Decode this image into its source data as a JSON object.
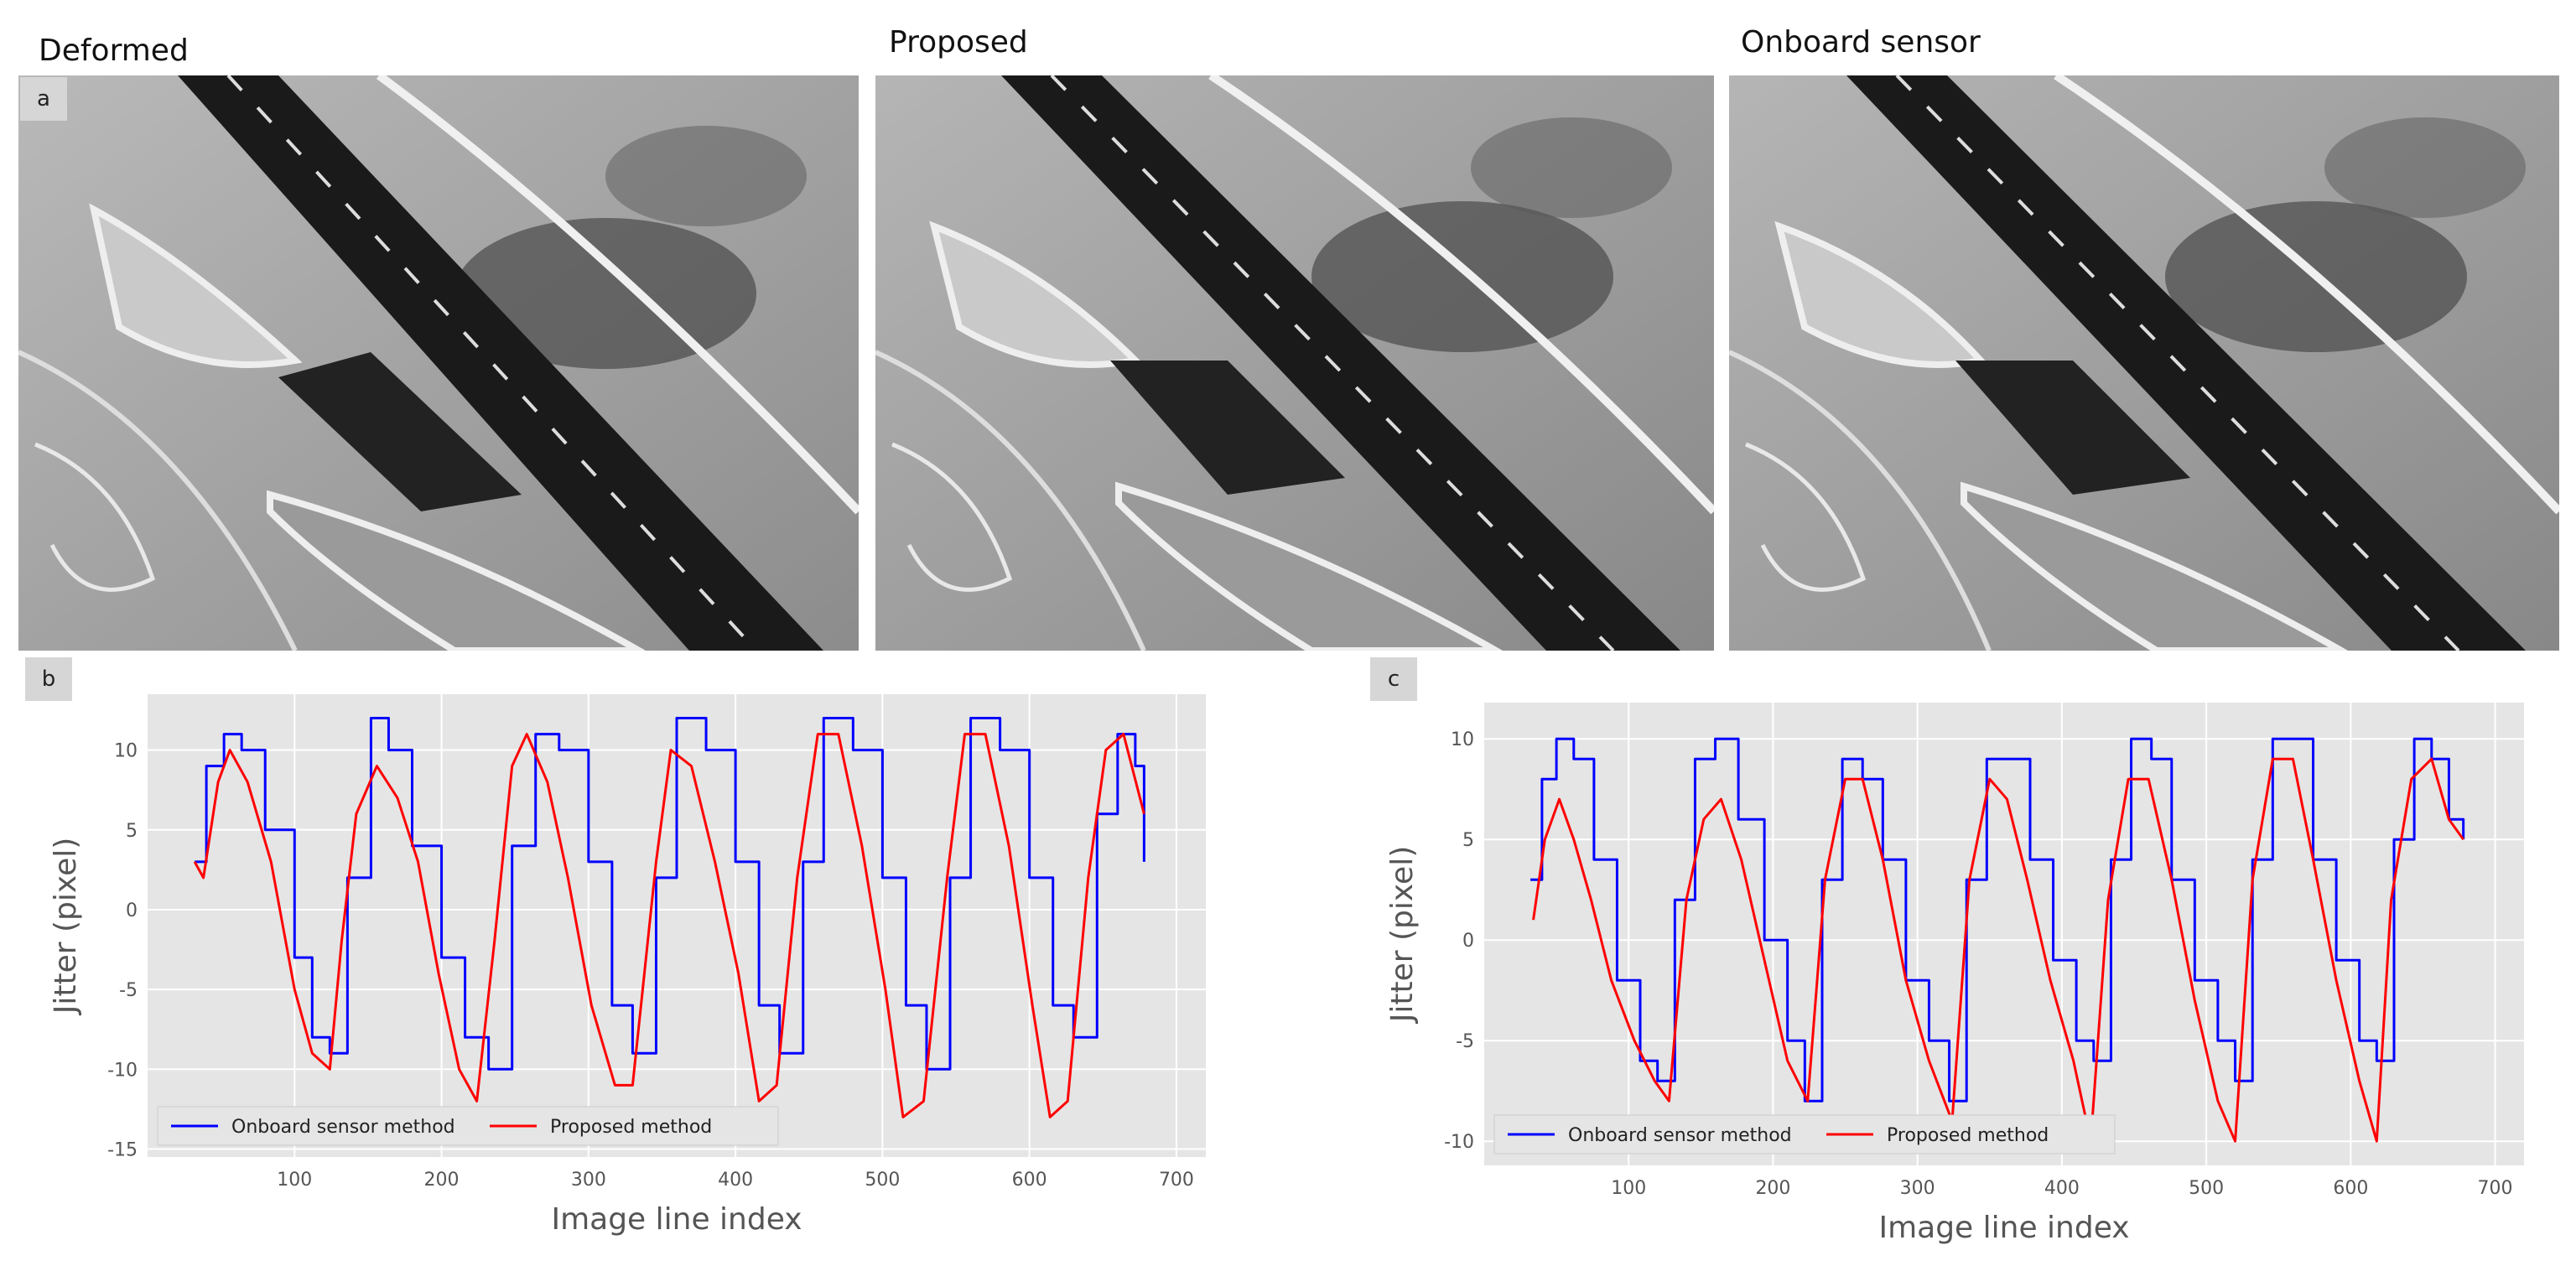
{
  "panels": {
    "image_titles": [
      "Deformed",
      "Proposed",
      "Onboard sensor"
    ],
    "labels": {
      "a": "a",
      "b": "b",
      "c": "c"
    }
  },
  "chart_data": [
    {
      "type": "line",
      "id": "b",
      "xlabel": "Image line index",
      "ylabel": "Jitter (pixel)",
      "xlim": [
        0,
        720
      ],
      "ylim": [
        -15.5,
        13.5
      ],
      "xticks": [
        100,
        200,
        300,
        400,
        500,
        600,
        700
      ],
      "yticks": [
        -15,
        -10,
        -5,
        0,
        5,
        10
      ],
      "legend": "lower-left",
      "series": [
        {
          "name": "Onboard sensor method",
          "color": "#0000ff",
          "x": [
            32,
            40,
            52,
            64,
            80,
            100,
            112,
            124,
            136,
            152,
            164,
            180,
            200,
            216,
            232,
            248,
            264,
            280,
            300,
            316,
            330,
            346,
            360,
            380,
            400,
            416,
            430,
            446,
            460,
            480,
            500,
            516,
            530,
            546,
            560,
            580,
            600,
            616,
            630,
            646,
            660,
            672,
            678
          ],
          "y": [
            3,
            9,
            11,
            10,
            5,
            -3,
            -8,
            -9,
            2,
            12,
            10,
            4,
            -3,
            -8,
            -10,
            4,
            11,
            10,
            3,
            -6,
            -9,
            2,
            12,
            10,
            3,
            -6,
            -9,
            3,
            12,
            10,
            2,
            -6,
            -10,
            2,
            12,
            10,
            2,
            -6,
            -8,
            6,
            11,
            9,
            3
          ]
        },
        {
          "name": "Proposed method",
          "color": "#ff0000",
          "x": [
            32,
            38,
            48,
            56,
            68,
            84,
            100,
            112,
            124,
            132,
            142,
            156,
            170,
            184,
            198,
            212,
            224,
            236,
            248,
            258,
            272,
            286,
            302,
            318,
            330,
            346,
            356,
            370,
            386,
            402,
            416,
            428,
            442,
            456,
            470,
            486,
            502,
            514,
            528,
            544,
            556,
            570,
            586,
            602,
            614,
            626,
            640,
            652,
            664,
            678
          ],
          "y": [
            3,
            2,
            8,
            10,
            8,
            3,
            -5,
            -9,
            -10,
            -2,
            6,
            9,
            7,
            3,
            -4,
            -10,
            -12,
            -2,
            9,
            11,
            8,
            2,
            -6,
            -11,
            -11,
            3,
            10,
            9,
            3,
            -4,
            -12,
            -11,
            2,
            11,
            11,
            4,
            -5,
            -13,
            -12,
            2,
            11,
            11,
            4,
            -6,
            -13,
            -12,
            2,
            10,
            11,
            6
          ]
        }
      ]
    },
    {
      "type": "line",
      "id": "c",
      "xlabel": "Image line index",
      "ylabel": "Jitter (pixel)",
      "xlim": [
        0,
        720
      ],
      "ylim": [
        -11.2,
        11.8
      ],
      "xticks": [
        100,
        200,
        300,
        400,
        500,
        600,
        700
      ],
      "yticks": [
        -10,
        -5,
        0,
        5,
        10
      ],
      "legend": "lower-left",
      "series": [
        {
          "name": "Onboard sensor method",
          "color": "#0000ff",
          "x": [
            32,
            40,
            50,
            62,
            76,
            92,
            108,
            120,
            132,
            146,
            160,
            176,
            194,
            210,
            222,
            234,
            248,
            262,
            276,
            292,
            308,
            322,
            334,
            348,
            362,
            378,
            394,
            410,
            422,
            434,
            448,
            462,
            476,
            492,
            508,
            520,
            532,
            546,
            560,
            574,
            590,
            606,
            618,
            630,
            644,
            656,
            668,
            678
          ],
          "y": [
            3,
            8,
            10,
            9,
            4,
            -2,
            -6,
            -7,
            2,
            9,
            10,
            6,
            0,
            -5,
            -8,
            3,
            9,
            8,
            4,
            -2,
            -5,
            -8,
            3,
            9,
            9,
            4,
            -1,
            -5,
            -6,
            4,
            10,
            9,
            3,
            -2,
            -5,
            -7,
            4,
            10,
            10,
            4,
            -1,
            -5,
            -6,
            5,
            10,
            9,
            6,
            5
          ]
        },
        {
          "name": "Proposed method",
          "color": "#ff0000",
          "x": [
            34,
            42,
            52,
            62,
            74,
            88,
            104,
            118,
            128,
            140,
            152,
            164,
            178,
            194,
            210,
            224,
            236,
            250,
            262,
            276,
            292,
            308,
            324,
            336,
            350,
            362,
            376,
            392,
            408,
            420,
            432,
            446,
            460,
            476,
            492,
            508,
            520,
            532,
            546,
            560,
            574,
            590,
            606,
            618,
            628,
            642,
            656,
            668,
            678
          ],
          "y": [
            1,
            5,
            7,
            5,
            2,
            -2,
            -5,
            -7,
            -8,
            2,
            6,
            7,
            4,
            -1,
            -6,
            -8,
            3,
            8,
            8,
            4,
            -2,
            -6,
            -9,
            3,
            8,
            7,
            3,
            -2,
            -6,
            -10,
            2,
            8,
            8,
            3,
            -3,
            -8,
            -10,
            3,
            9,
            9,
            4,
            -2,
            -7,
            -10,
            2,
            8,
            9,
            6,
            5
          ]
        }
      ]
    }
  ]
}
